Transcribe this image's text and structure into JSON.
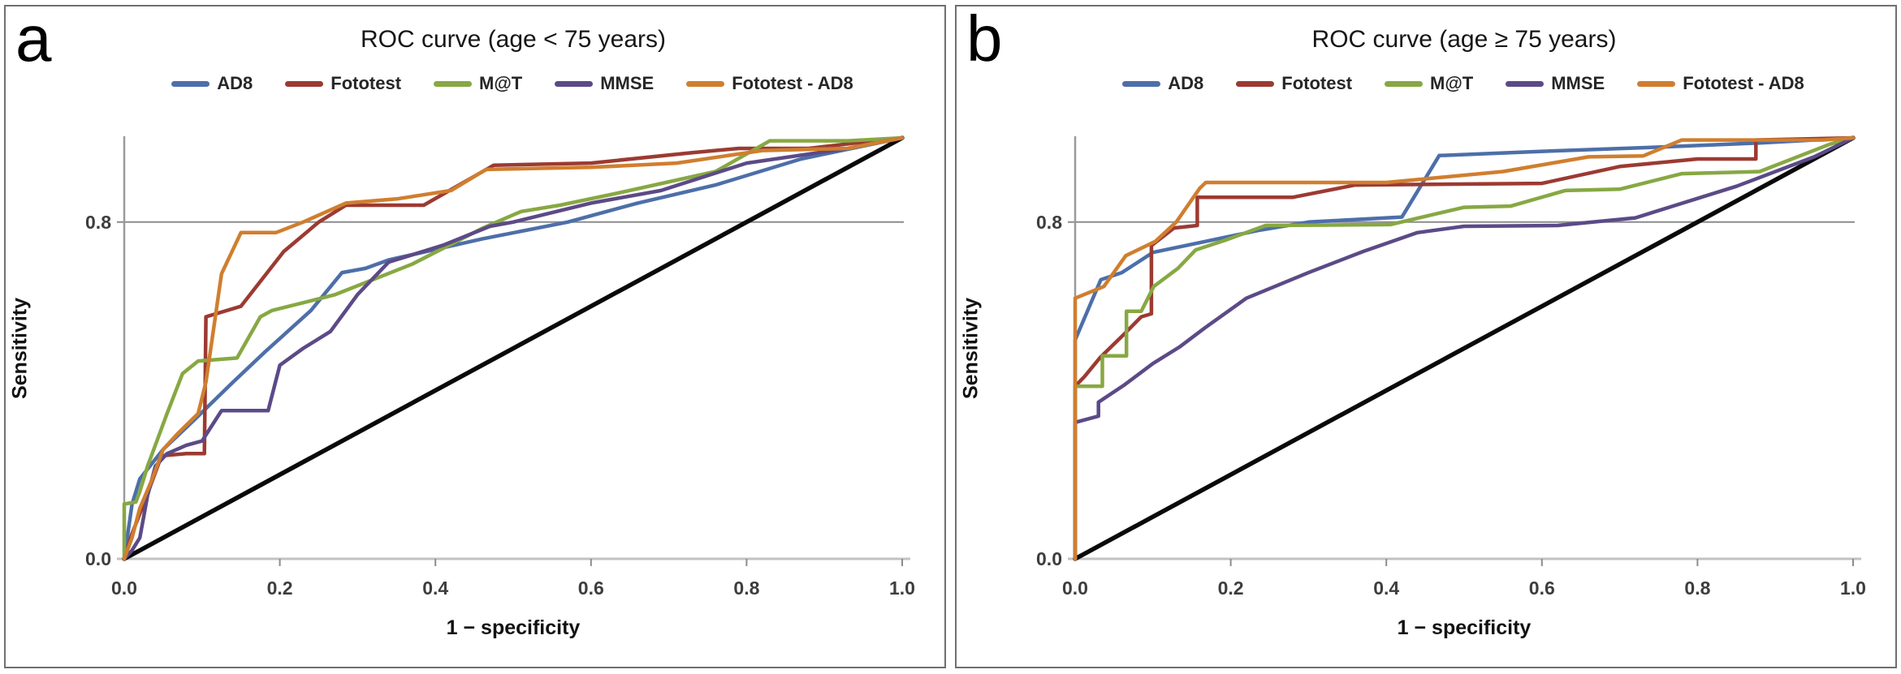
{
  "figure_background": "#ffffff",
  "colors": {
    "panel_border": "#6f6f6f",
    "x_axis_line": "#c2c2c2",
    "y_axis_line": "#9a9a9a",
    "gridline": "#8c8c8c",
    "tick_label": "#3d3d3d",
    "diagonal_reference": "#0a0a0a"
  },
  "chart_data": [
    {
      "type": "line",
      "panel_letter": "a",
      "title": "ROC curve (age < 75 years)",
      "xlabel": "1 − specificity",
      "ylabel": "Sensitivity",
      "xlim": [
        0,
        1
      ],
      "ylim": [
        0,
        1
      ],
      "x_ticks": [
        "0.0",
        "0.2",
        "0.4",
        "0.6",
        "0.8",
        "1.0"
      ],
      "x_tick_values": [
        0,
        0.2,
        0.4,
        0.6,
        0.8,
        1.0
      ],
      "y_ticks": [
        "0.0",
        "0.8"
      ],
      "y_tick_values": [
        0,
        0.8
      ],
      "gridline_y": 0.8,
      "legend_position": "top",
      "reference_line": {
        "name": "chance-diagonal",
        "color": "#0a0a0a",
        "points": [
          [
            0,
            0
          ],
          [
            1,
            1
          ]
        ]
      },
      "series": [
        {
          "name": "AD8",
          "color": "#4d6fa9",
          "points": [
            [
              0,
              0
            ],
            [
              0.01,
              0.13
            ],
            [
              0.02,
              0.19
            ],
            [
              0.05,
              0.26
            ],
            [
              0.09,
              0.33
            ],
            [
              0.14,
              0.42
            ],
            [
              0.18,
              0.49
            ],
            [
              0.24,
              0.59
            ],
            [
              0.28,
              0.68
            ],
            [
              0.31,
              0.69
            ],
            [
              0.34,
              0.71
            ],
            [
              0.46,
              0.76
            ],
            [
              0.57,
              0.8
            ],
            [
              0.66,
              0.845
            ],
            [
              0.76,
              0.888
            ],
            [
              0.87,
              0.95
            ],
            [
              1,
              1
            ]
          ]
        },
        {
          "name": "Fototest",
          "color": "#9c3a32",
          "points": [
            [
              0,
              0
            ],
            [
              0.01,
              0.06
            ],
            [
              0.025,
              0.13
            ],
            [
              0.045,
              0.23
            ],
            [
              0.05,
              0.245
            ],
            [
              0.08,
              0.25
            ],
            [
              0.103,
              0.25
            ],
            [
              0.105,
              0.575
            ],
            [
              0.15,
              0.6
            ],
            [
              0.205,
              0.73
            ],
            [
              0.25,
              0.8
            ],
            [
              0.285,
              0.84
            ],
            [
              0.385,
              0.84
            ],
            [
              0.475,
              0.935
            ],
            [
              0.6,
              0.94
            ],
            [
              0.73,
              0.965
            ],
            [
              0.79,
              0.975
            ],
            [
              0.88,
              0.975
            ],
            [
              0.95,
              0.99
            ],
            [
              1,
              1
            ]
          ]
        },
        {
          "name": "M@T",
          "color": "#87a843",
          "points": [
            [
              0,
              0
            ],
            [
              0,
              0.13
            ],
            [
              0.015,
              0.135
            ],
            [
              0.02,
              0.16
            ],
            [
              0.03,
              0.22
            ],
            [
              0.055,
              0.345
            ],
            [
              0.075,
              0.44
            ],
            [
              0.095,
              0.47
            ],
            [
              0.145,
              0.477
            ],
            [
              0.175,
              0.575
            ],
            [
              0.19,
              0.59
            ],
            [
              0.27,
              0.627
            ],
            [
              0.37,
              0.7
            ],
            [
              0.46,
              0.785
            ],
            [
              0.51,
              0.825
            ],
            [
              0.56,
              0.84
            ],
            [
              0.63,
              0.867
            ],
            [
              0.76,
              0.92
            ],
            [
              0.83,
              0.993
            ],
            [
              0.93,
              0.993
            ],
            [
              1,
              1
            ]
          ]
        },
        {
          "name": "MMSE",
          "color": "#5c4a87",
          "points": [
            [
              0,
              0
            ],
            [
              0.01,
              0.02
            ],
            [
              0.02,
              0.05
            ],
            [
              0.03,
              0.15
            ],
            [
              0.04,
              0.22
            ],
            [
              0.055,
              0.25
            ],
            [
              0.08,
              0.27
            ],
            [
              0.1,
              0.28
            ],
            [
              0.125,
              0.352
            ],
            [
              0.185,
              0.352
            ],
            [
              0.2,
              0.46
            ],
            [
              0.23,
              0.5
            ],
            [
              0.265,
              0.54
            ],
            [
              0.3,
              0.628
            ],
            [
              0.34,
              0.705
            ],
            [
              0.41,
              0.745
            ],
            [
              0.47,
              0.79
            ],
            [
              0.5,
              0.8
            ],
            [
              0.6,
              0.845
            ],
            [
              0.69,
              0.875
            ],
            [
              0.8,
              0.94
            ],
            [
              0.93,
              0.975
            ],
            [
              1,
              1
            ]
          ]
        },
        {
          "name": "Fototest - AD8",
          "color": "#d07e2f",
          "points": [
            [
              0,
              0
            ],
            [
              0.01,
              0.05
            ],
            [
              0.02,
              0.12
            ],
            [
              0.035,
              0.185
            ],
            [
              0.05,
              0.26
            ],
            [
              0.07,
              0.3
            ],
            [
              0.095,
              0.345
            ],
            [
              0.105,
              0.42
            ],
            [
              0.125,
              0.677
            ],
            [
              0.15,
              0.775
            ],
            [
              0.195,
              0.775
            ],
            [
              0.23,
              0.8
            ],
            [
              0.285,
              0.845
            ],
            [
              0.35,
              0.855
            ],
            [
              0.42,
              0.875
            ],
            [
              0.465,
              0.925
            ],
            [
              0.6,
              0.93
            ],
            [
              0.71,
              0.94
            ],
            [
              0.82,
              0.97
            ],
            [
              0.93,
              0.975
            ],
            [
              1,
              1
            ]
          ]
        }
      ]
    },
    {
      "type": "line",
      "panel_letter": "b",
      "title": "ROC curve (age ≥ 75 years)",
      "xlabel": "1 − specificity",
      "ylabel": "Sensitivity",
      "xlim": [
        0,
        1
      ],
      "ylim": [
        0,
        1
      ],
      "x_ticks": [
        "0.0",
        "0.2",
        "0.4",
        "0.6",
        "0.8",
        "1.0"
      ],
      "x_tick_values": [
        0,
        0.2,
        0.4,
        0.6,
        0.8,
        1.0
      ],
      "y_ticks": [
        "0.0",
        "0.8"
      ],
      "y_tick_values": [
        0,
        0.8
      ],
      "gridline_y": 0.8,
      "legend_position": "top",
      "reference_line": {
        "name": "chance-diagonal",
        "color": "#0a0a0a",
        "points": [
          [
            0,
            0
          ],
          [
            1,
            1
          ]
        ]
      },
      "series": [
        {
          "name": "AD8",
          "color": "#4d6fa9",
          "points": [
            [
              0,
              0
            ],
            [
              0,
              0.52
            ],
            [
              0.033,
              0.663
            ],
            [
              0.06,
              0.68
            ],
            [
              0.1,
              0.728
            ],
            [
              0.165,
              0.753
            ],
            [
              0.235,
              0.78
            ],
            [
              0.3,
              0.8
            ],
            [
              0.42,
              0.812
            ],
            [
              0.468,
              0.958
            ],
            [
              0.6,
              0.968
            ],
            [
              0.75,
              0.978
            ],
            [
              0.88,
              0.988
            ],
            [
              1,
              1
            ]
          ]
        },
        {
          "name": "Fototest",
          "color": "#9c3a32",
          "points": [
            [
              0,
              0
            ],
            [
              0,
              0.41
            ],
            [
              0.012,
              0.433
            ],
            [
              0.032,
              0.478
            ],
            [
              0.061,
              0.53
            ],
            [
              0.085,
              0.575
            ],
            [
              0.098,
              0.582
            ],
            [
              0.098,
              0.744
            ],
            [
              0.127,
              0.786
            ],
            [
              0.157,
              0.792
            ],
            [
              0.157,
              0.859
            ],
            [
              0.28,
              0.859
            ],
            [
              0.36,
              0.888
            ],
            [
              0.6,
              0.892
            ],
            [
              0.7,
              0.932
            ],
            [
              0.8,
              0.95
            ],
            [
              0.875,
              0.95
            ],
            [
              0.875,
              0.995
            ],
            [
              1,
              1
            ]
          ]
        },
        {
          "name": "M@T",
          "color": "#87a843",
          "points": [
            [
              0,
              0
            ],
            [
              0,
              0.41
            ],
            [
              0.035,
              0.41
            ],
            [
              0.035,
              0.482
            ],
            [
              0.066,
              0.482
            ],
            [
              0.066,
              0.588
            ],
            [
              0.085,
              0.588
            ],
            [
              0.101,
              0.647
            ],
            [
              0.132,
              0.69
            ],
            [
              0.155,
              0.734
            ],
            [
              0.193,
              0.757
            ],
            [
              0.245,
              0.792
            ],
            [
              0.405,
              0.794
            ],
            [
              0.5,
              0.835
            ],
            [
              0.56,
              0.838
            ],
            [
              0.63,
              0.875
            ],
            [
              0.7,
              0.878
            ],
            [
              0.78,
              0.915
            ],
            [
              0.88,
              0.92
            ],
            [
              0.97,
              0.985
            ],
            [
              1,
              1
            ]
          ]
        },
        {
          "name": "MMSE",
          "color": "#5c4a87",
          "points": [
            [
              0,
              0
            ],
            [
              0,
              0.324
            ],
            [
              0.03,
              0.339
            ],
            [
              0.03,
              0.372
            ],
            [
              0.064,
              0.414
            ],
            [
              0.1,
              0.464
            ],
            [
              0.134,
              0.503
            ],
            [
              0.167,
              0.549
            ],
            [
              0.22,
              0.619
            ],
            [
              0.3,
              0.68
            ],
            [
              0.37,
              0.73
            ],
            [
              0.44,
              0.775
            ],
            [
              0.5,
              0.79
            ],
            [
              0.62,
              0.792
            ],
            [
              0.72,
              0.81
            ],
            [
              0.85,
              0.885
            ],
            [
              0.95,
              0.955
            ],
            [
              1,
              1
            ]
          ]
        },
        {
          "name": "Fototest - AD8",
          "color": "#d07e2f",
          "points": [
            [
              0,
              0
            ],
            [
              0,
              0.619
            ],
            [
              0.037,
              0.647
            ],
            [
              0.065,
              0.72
            ],
            [
              0.103,
              0.754
            ],
            [
              0.13,
              0.8
            ],
            [
              0.16,
              0.88
            ],
            [
              0.168,
              0.894
            ],
            [
              0.4,
              0.894
            ],
            [
              0.55,
              0.92
            ],
            [
              0.66,
              0.955
            ],
            [
              0.73,
              0.957
            ],
            [
              0.78,
              0.995
            ],
            [
              0.96,
              0.995
            ],
            [
              1,
              1
            ]
          ]
        }
      ]
    }
  ]
}
